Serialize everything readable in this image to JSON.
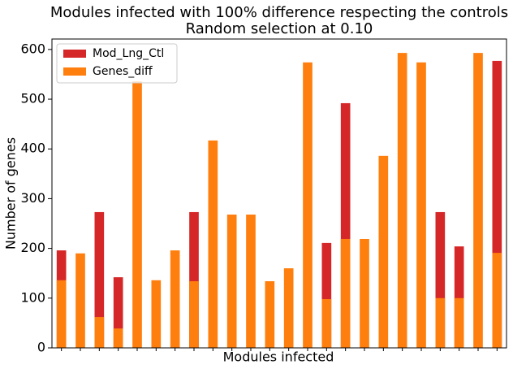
{
  "chart_data": {
    "type": "bar",
    "overlay": true,
    "title": "Modules infected with 100% difference respecting the controls",
    "subtitle": "Random selection  at 0.10",
    "xlabel": "Modules infected",
    "ylabel": "Number of genes",
    "categories": [
      null,
      null,
      null,
      null,
      null,
      null,
      null,
      null,
      null,
      null,
      null,
      null,
      null,
      null,
      null,
      null,
      null,
      null,
      null,
      null,
      null,
      null,
      null,
      null
    ],
    "series": [
      {
        "name": "Mod_Lng_Ctl",
        "color": "#d62728",
        "values": [
          196,
          null,
          273,
          142,
          null,
          null,
          null,
          273,
          null,
          null,
          null,
          null,
          null,
          null,
          211,
          492,
          null,
          null,
          null,
          null,
          273,
          204,
          null,
          577
        ]
      },
      {
        "name": "Genes_diff",
        "color": "#ff7f0e",
        "values": [
          136,
          190,
          62,
          39,
          536,
          136,
          196,
          134,
          417,
          268,
          268,
          134,
          160,
          574,
          98,
          219,
          219,
          386,
          593,
          574,
          100,
          100,
          593,
          191
        ]
      }
    ],
    "ylim": [
      0,
      621
    ],
    "yticks": [
      0,
      100,
      200,
      300,
      400,
      500,
      600
    ],
    "grid": false,
    "legend": "upper left"
  }
}
